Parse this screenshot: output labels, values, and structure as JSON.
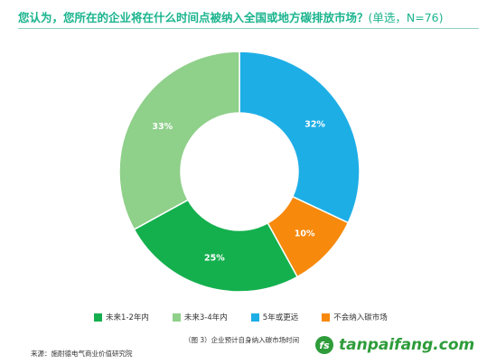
{
  "title": "您认为，您所在的企业将在什么时间点被纳入全国或地方碳排放市场？",
  "subtitle": "(单选，N=76)",
  "caption": "（图 3）企业预计自身纳入碳市场时间",
  "source": "来源：施耐德电气商业价值研究院",
  "watermark": {
    "mark": "fs",
    "text": "tanpaifang.com"
  },
  "chart_data": {
    "type": "pie",
    "donut": true,
    "legend_position": "bottom",
    "categories": [
      "未来1-2年内",
      "未来3-4年内",
      "5年或更远",
      "不会纳入碳市场"
    ],
    "values": [
      25,
      33,
      32,
      10
    ],
    "value_labels": [
      "25%",
      "33%",
      "32%",
      "10%"
    ],
    "colors": [
      "#14b04e",
      "#8fd08a",
      "#1eaee6",
      "#f7890c"
    ],
    "slice_order": [
      2,
      3,
      0,
      1
    ],
    "start_at": "12 o'clock, clockwise"
  }
}
